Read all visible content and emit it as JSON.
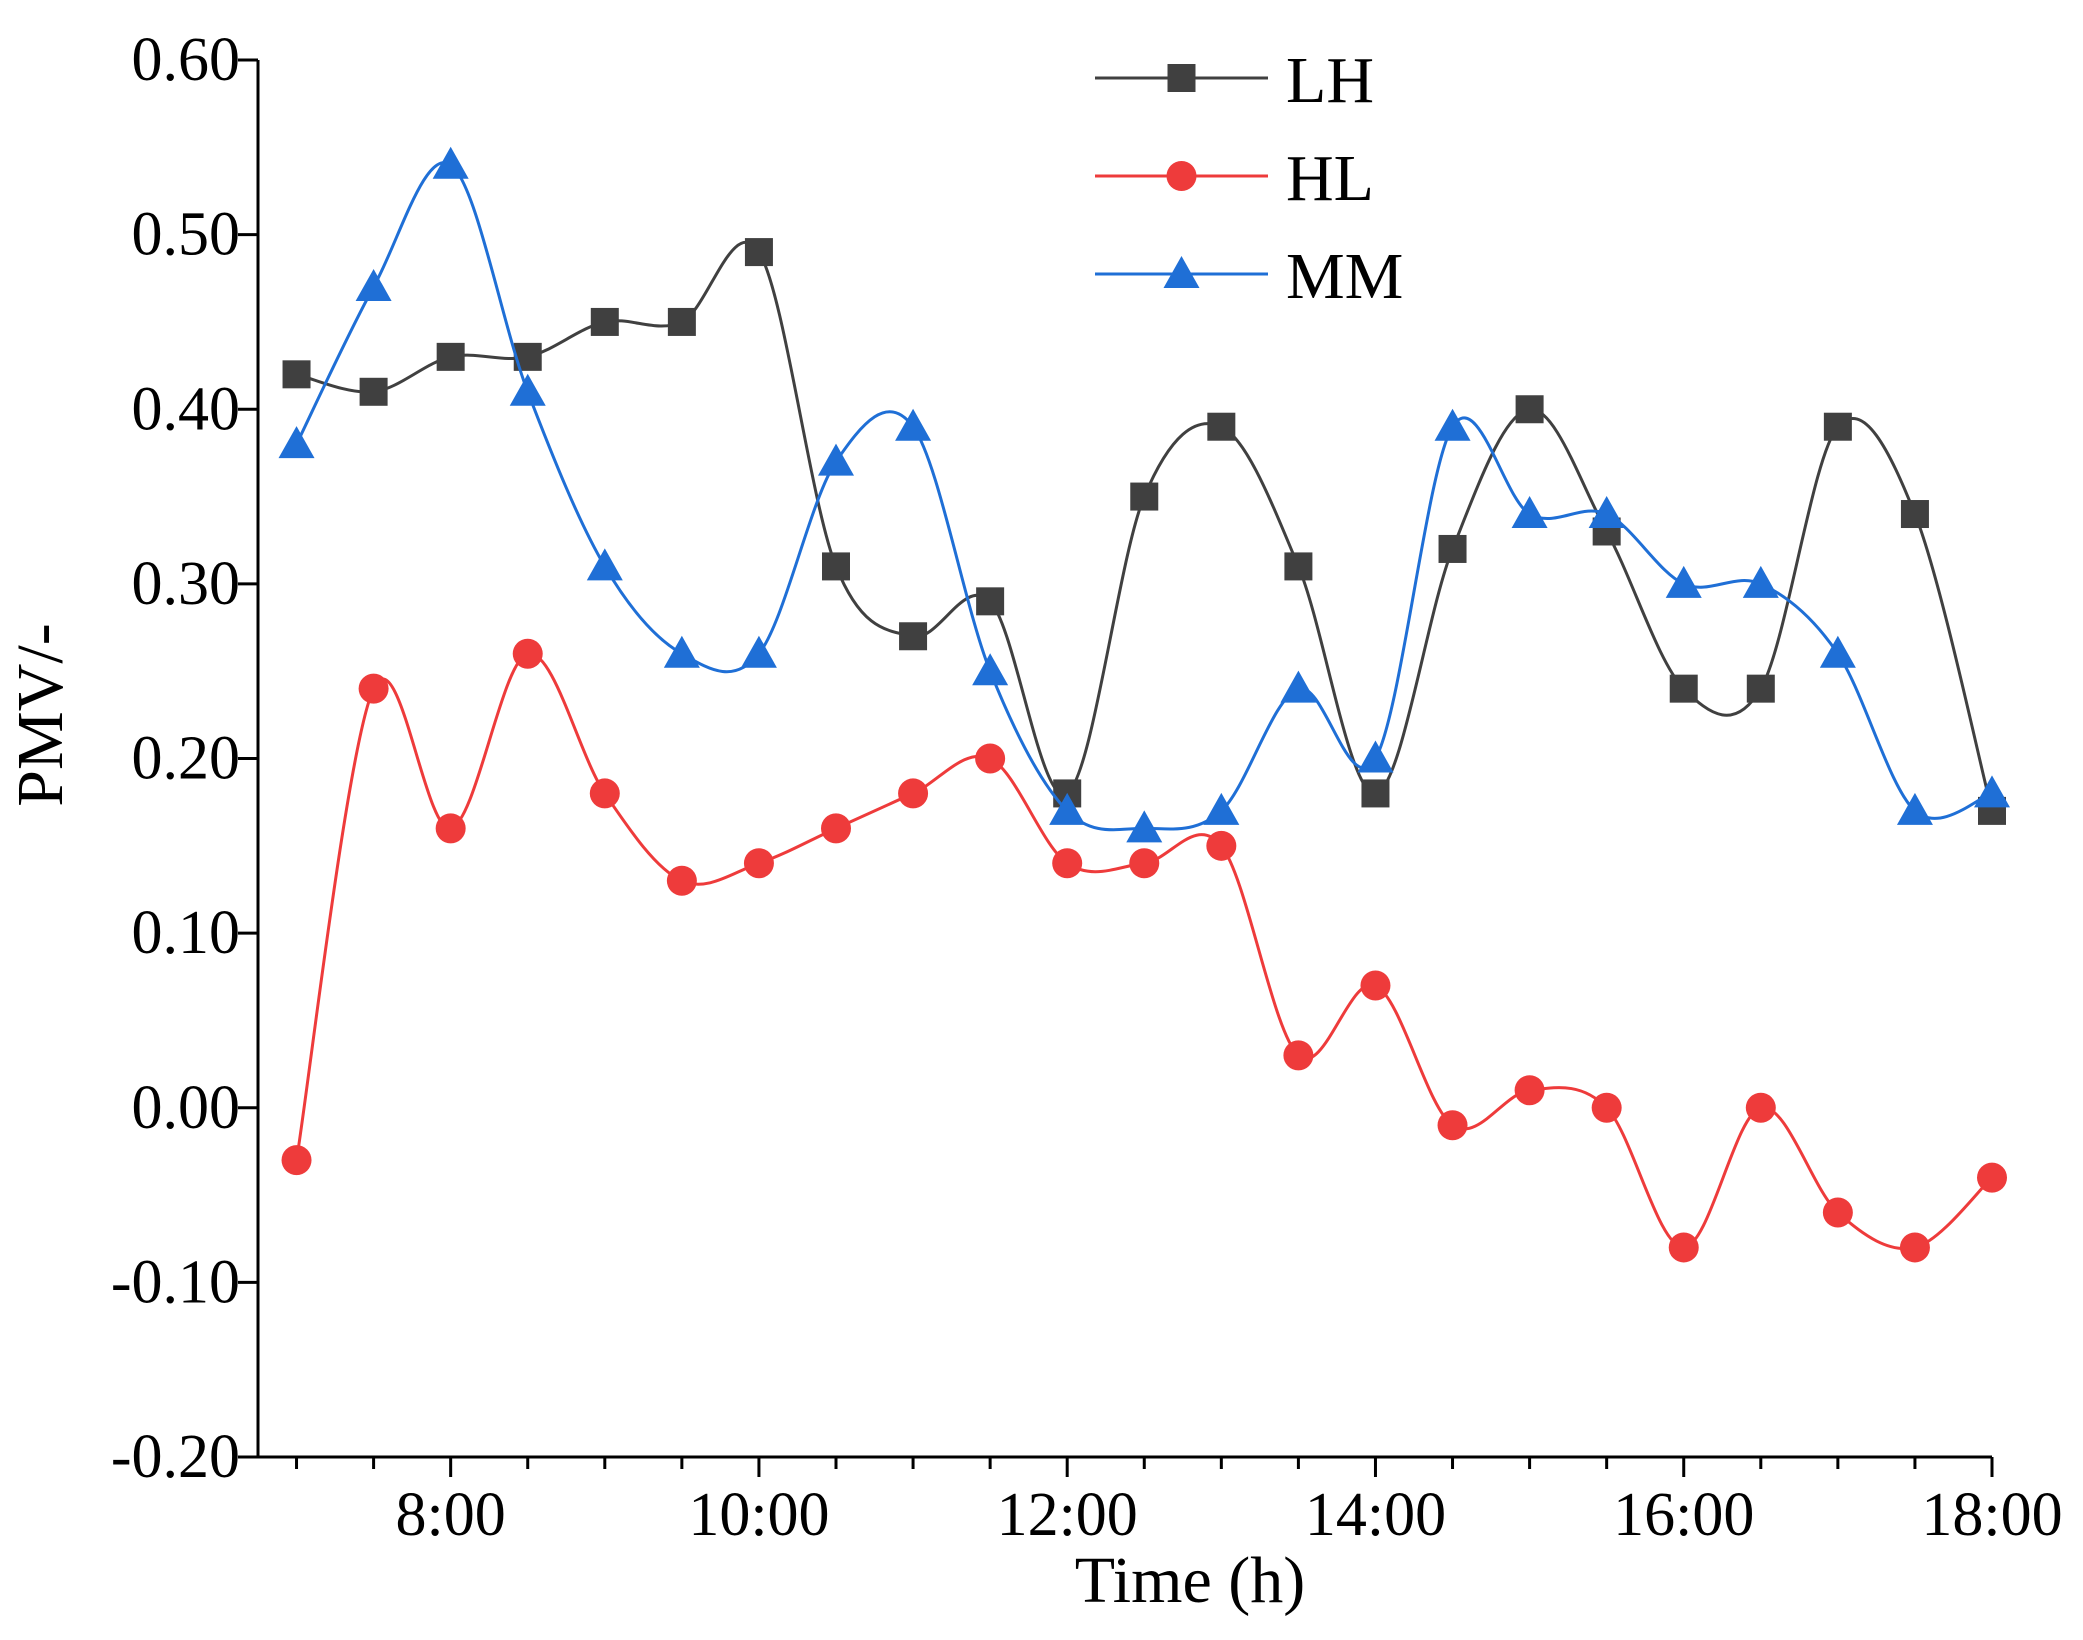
{
  "chart_data": {
    "type": "line",
    "title": "",
    "xlabel": "Time (h)",
    "ylabel": "PMV/-",
    "xlim": [
      6.75,
      18.0
    ],
    "ylim": [
      -0.2,
      0.6
    ],
    "x_ticks": [
      8,
      10,
      12,
      14,
      16,
      18
    ],
    "x_tick_labels": [
      "8:00",
      "10:00",
      "12:00",
      "14:00",
      "16:00",
      "18:00"
    ],
    "y_ticks": [
      -0.2,
      -0.1,
      0.0,
      0.1,
      0.2,
      0.3,
      0.4,
      0.5,
      0.6
    ],
    "y_tick_labels": [
      "-0.20",
      "-0.10",
      "0.00",
      "0.10",
      "0.20",
      "0.30",
      "0.40",
      "0.50",
      "0.60"
    ],
    "grid": false,
    "legend_position": "top-center",
    "x": [
      7.0,
      7.5,
      8.0,
      8.5,
      9.0,
      9.5,
      10.0,
      10.5,
      11.0,
      11.5,
      12.0,
      12.5,
      13.0,
      13.5,
      14.0,
      14.5,
      15.0,
      15.5,
      16.0,
      16.5,
      17.0,
      17.5,
      18.0
    ],
    "series": [
      {
        "name": "LH",
        "color": "#404040",
        "marker": "square",
        "values": [
          0.42,
          0.41,
          0.43,
          0.43,
          0.45,
          0.45,
          0.49,
          0.31,
          0.27,
          0.29,
          0.18,
          0.35,
          0.39,
          0.31,
          0.18,
          0.32,
          0.4,
          0.33,
          0.24,
          0.24,
          0.39,
          0.34,
          0.17
        ]
      },
      {
        "name": "HL",
        "color": "#ee3b3b",
        "marker": "circle",
        "values": [
          -0.03,
          0.24,
          0.16,
          0.26,
          0.18,
          0.13,
          0.14,
          0.16,
          0.18,
          0.2,
          0.14,
          0.14,
          0.15,
          0.03,
          0.07,
          -0.01,
          0.01,
          0.0,
          -0.08,
          0.0,
          -0.06,
          -0.08,
          -0.04
        ]
      },
      {
        "name": "MM",
        "color": "#1f6fd6",
        "marker": "triangle",
        "values": [
          0.38,
          0.47,
          0.54,
          0.41,
          0.31,
          0.26,
          0.26,
          0.37,
          0.39,
          0.25,
          0.17,
          0.16,
          0.17,
          0.24,
          0.2,
          0.39,
          0.34,
          0.34,
          0.3,
          0.3,
          0.26,
          0.17,
          0.18
        ]
      }
    ]
  }
}
